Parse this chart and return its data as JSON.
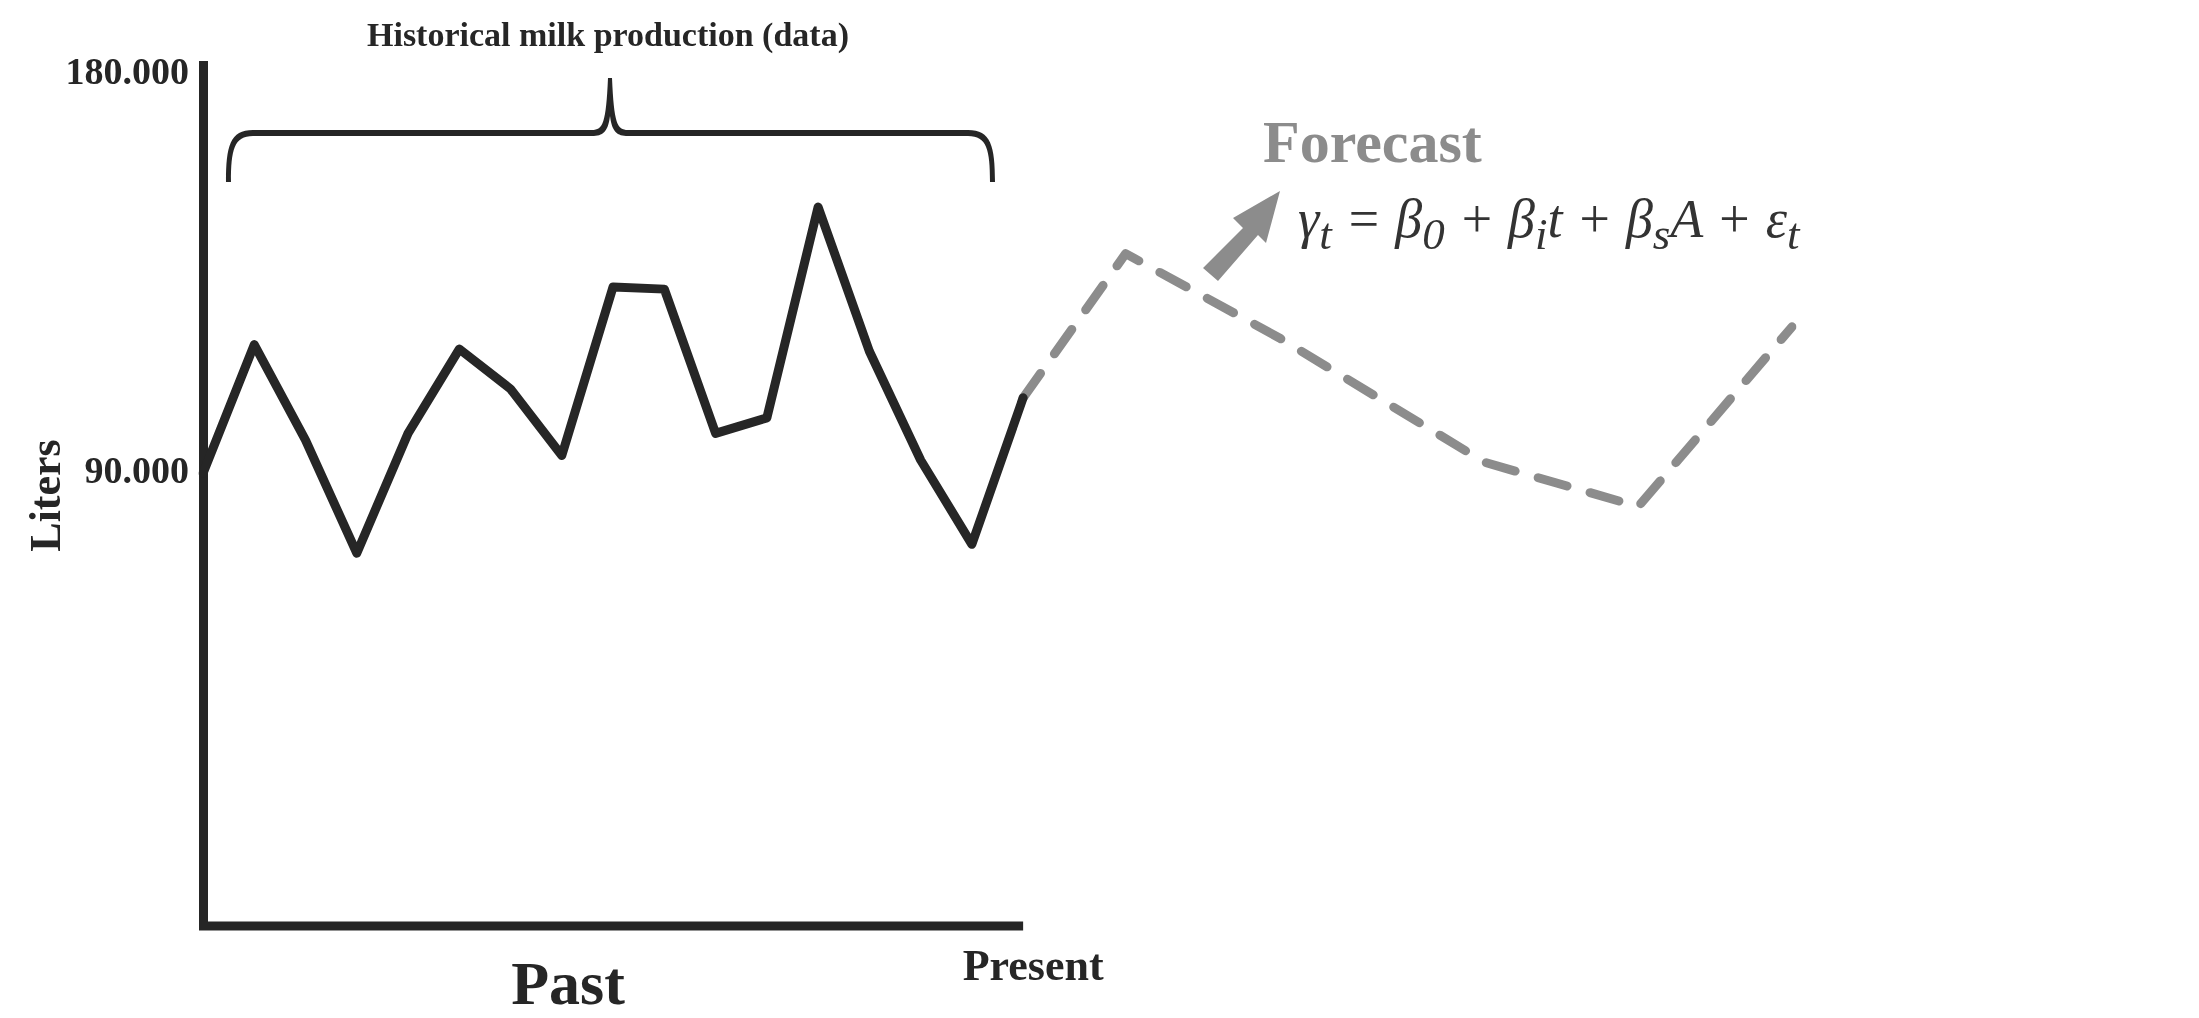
{
  "chart_data": {
    "type": "line",
    "title": "Historical milk production (data)",
    "xlabel": "Past",
    "ylabel": "Liters",
    "categories": [
      null,
      null,
      null,
      null,
      null,
      null,
      null,
      null,
      null,
      null,
      null,
      null,
      null,
      null,
      null,
      null,
      null,
      null,
      null,
      null,
      null,
      null,
      null,
      null,
      null,
      null,
      null,
      null,
      null,
      null,
      null,
      null
    ],
    "ylim": [
      -12000,
      182000
    ],
    "yticks": [
      {
        "value": 90000,
        "label": "90.000"
      },
      {
        "value": 180000,
        "label": "180.000"
      }
    ],
    "tick_labels": "y",
    "grid": false,
    "legend": false,
    "marker": "none",
    "annotations": [
      "Present",
      "γ$_{t}$ = β$_{0}$ + β$_{i}$t + β$_{s}$A + ε$_{t}$"
    ],
    "series": [
      {
        "color": "#262626",
        "line_style": "solid",
        "values": [
          90000,
          119000,
          97500,
          72000,
          99000,
          118000,
          109000,
          94000,
          132000,
          131500,
          99000,
          102500,
          150000,
          117500,
          93000,
          74000,
          107000,
          null,
          null,
          null,
          null,
          null,
          null,
          null,
          null,
          null,
          null,
          null,
          null,
          null,
          null,
          null
        ]
      },
      {
        "name": "Forecast",
        "color": "#8c8c8c",
        "line_style": "dashed",
        "values": [
          null,
          null,
          null,
          null,
          null,
          null,
          null,
          null,
          null,
          null,
          null,
          null,
          null,
          null,
          null,
          null,
          107000,
          null,
          139500,
          null,
          null,
          120500,
          null,
          null,
          null,
          92500,
          null,
          null,
          82500,
          null,
          null,
          123000
        ]
      }
    ]
  }
}
